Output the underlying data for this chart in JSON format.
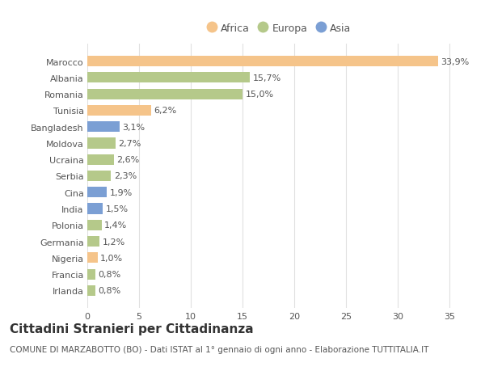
{
  "countries": [
    "Marocco",
    "Albania",
    "Romania",
    "Tunisia",
    "Bangladesh",
    "Moldova",
    "Ucraina",
    "Serbia",
    "Cina",
    "India",
    "Polonia",
    "Germania",
    "Nigeria",
    "Francia",
    "Irlanda"
  ],
  "values": [
    33.9,
    15.7,
    15.0,
    6.2,
    3.1,
    2.7,
    2.6,
    2.3,
    1.9,
    1.5,
    1.4,
    1.2,
    1.0,
    0.8,
    0.8
  ],
  "labels": [
    "33,9%",
    "15,7%",
    "15,0%",
    "6,2%",
    "3,1%",
    "2,7%",
    "2,6%",
    "2,3%",
    "1,9%",
    "1,5%",
    "1,4%",
    "1,2%",
    "1,0%",
    "0,8%",
    "0,8%"
  ],
  "colors": [
    "#f5c48a",
    "#b5c98a",
    "#b5c98a",
    "#f5c48a",
    "#7b9fd4",
    "#b5c98a",
    "#b5c98a",
    "#b5c98a",
    "#7b9fd4",
    "#7b9fd4",
    "#b5c98a",
    "#b5c98a",
    "#f5c48a",
    "#b5c98a",
    "#b5c98a"
  ],
  "legend_labels": [
    "Africa",
    "Europa",
    "Asia"
  ],
  "legend_colors": [
    "#f5c48a",
    "#b5c98a",
    "#7b9fd4"
  ],
  "title": "Cittadini Stranieri per Cittadinanza",
  "subtitle": "COMUNE DI MARZABOTTO (BO) - Dati ISTAT al 1° gennaio di ogni anno - Elaborazione TUTTITALIA.IT",
  "xlim": [
    0,
    37
  ],
  "xticks": [
    0,
    5,
    10,
    15,
    20,
    25,
    30,
    35
  ],
  "background_color": "#ffffff",
  "plot_bg_color": "#ffffff",
  "grid_color": "#e0e0e0",
  "bar_height": 0.65,
  "label_fontsize": 8,
  "tick_fontsize": 8,
  "title_fontsize": 11,
  "subtitle_fontsize": 7.5,
  "legend_fontsize": 9
}
